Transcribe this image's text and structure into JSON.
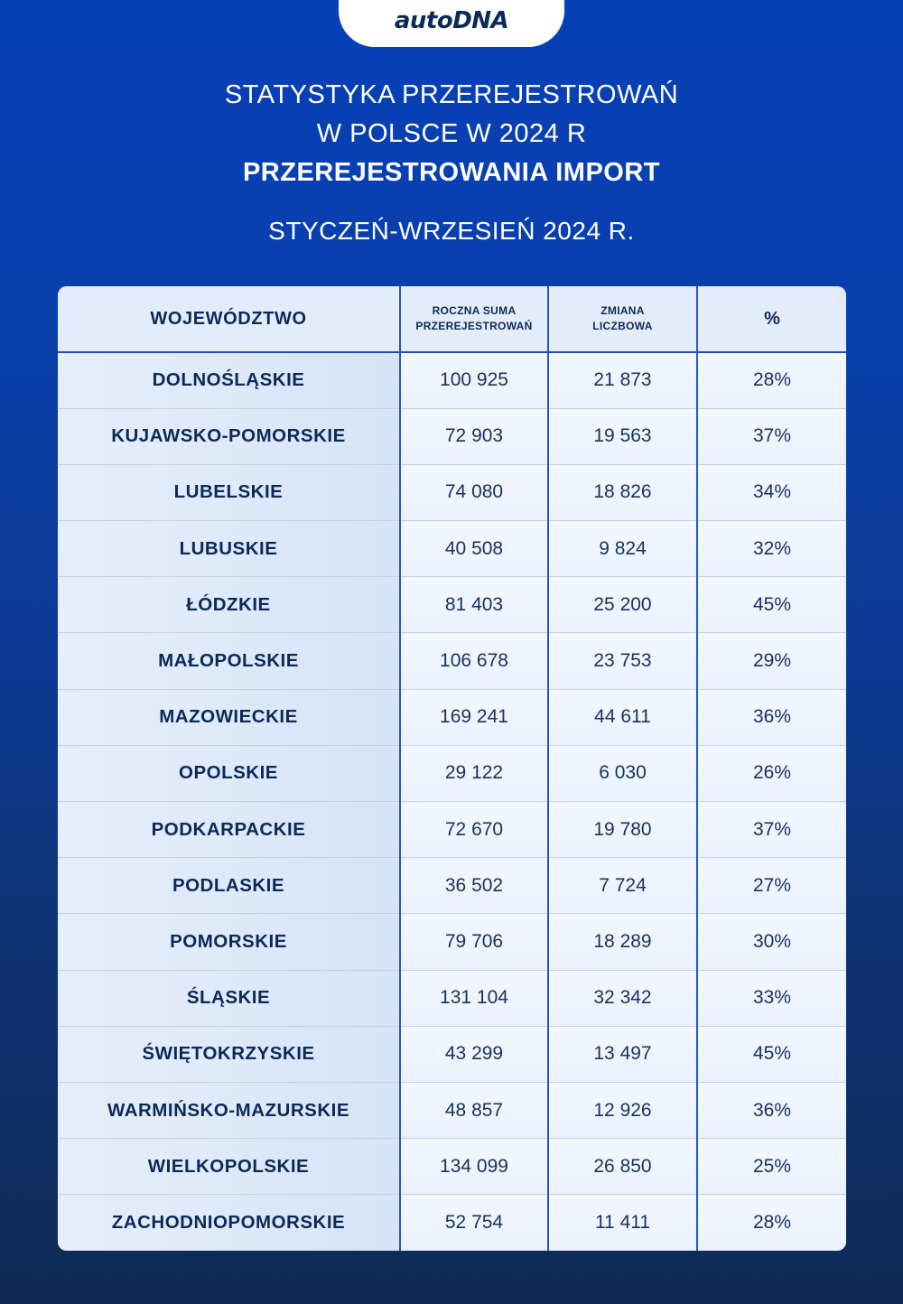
{
  "brand": {
    "logo_text": "autoDNA"
  },
  "header": {
    "title_line1": "STATYSTYKA PRZEREJESTROWAŃ",
    "title_line2": "W POLSCE W 2024 R",
    "title_line3": "PRZEREJESTROWANIA IMPORT",
    "subtitle": "STYCZEŃ-WRZESIEŃ 2024 R."
  },
  "table": {
    "columns": [
      {
        "label_line1": "WOJEWÓDZTWO",
        "label_line2": ""
      },
      {
        "label_line1": "ROCZNA SUMA",
        "label_line2": "PRZEREJESTROWAŃ"
      },
      {
        "label_line1": "ZMIANA",
        "label_line2": "LICZBOWA"
      },
      {
        "label_line1": "%",
        "label_line2": ""
      }
    ],
    "rows": [
      {
        "region": "DOLNOŚLĄSKIE",
        "total": "100 925",
        "change": "21 873",
        "pct": "28%"
      },
      {
        "region": "KUJAWSKO-POMORSKIE",
        "total": "72 903",
        "change": "19 563",
        "pct": "37%"
      },
      {
        "region": "LUBELSKIE",
        "total": "74 080",
        "change": "18 826",
        "pct": "34%"
      },
      {
        "region": "LUBUSKIE",
        "total": "40 508",
        "change": "9 824",
        "pct": "32%"
      },
      {
        "region": "ŁÓDZKIE",
        "total": "81 403",
        "change": "25 200",
        "pct": "45%"
      },
      {
        "region": "MAŁOPOLSKIE",
        "total": "106 678",
        "change": "23 753",
        "pct": "29%"
      },
      {
        "region": "MAZOWIECKIE",
        "total": "169 241",
        "change": "44 611",
        "pct": "36%"
      },
      {
        "region": "OPOLSKIE",
        "total": "29 122",
        "change": "6 030",
        "pct": "26%"
      },
      {
        "region": "PODKARPACKIE",
        "total": "72 670",
        "change": "19 780",
        "pct": "37%"
      },
      {
        "region": "PODLASKIE",
        "total": "36 502",
        "change": "7 724",
        "pct": "27%"
      },
      {
        "region": "POMORSKIE",
        "total": "79 706",
        "change": "18 289",
        "pct": "30%"
      },
      {
        "region": "ŚLĄSKIE",
        "total": "131 104",
        "change": "32 342",
        "pct": "33%"
      },
      {
        "region": "ŚWIĘTOKRZYSKIE",
        "total": "43 299",
        "change": "13 497",
        "pct": "45%"
      },
      {
        "region": "WARMIŃSKO-MAZURSKIE",
        "total": "48 857",
        "change": "12 926",
        "pct": "36%"
      },
      {
        "region": "WIELKOPOLSKIE",
        "total": "134 099",
        "change": "26 850",
        "pct": "25%"
      },
      {
        "region": "ZACHODNIOPOMORSKIE",
        "total": "52 754",
        "change": "11 411",
        "pct": "28%"
      }
    ]
  },
  "colors": {
    "background_top": "#0640b8",
    "background_bottom": "#0f2a55",
    "text_dark": "#0b2a5a",
    "divider_blue": "#2557c0"
  },
  "chart_data": {
    "type": "table",
    "title": "STATYSTYKA PRZEREJESTROWAŃ W POLSCE W 2024 R — PRZEREJESTROWANIA IMPORT",
    "subtitle": "STYCZEŃ-WRZESIEŃ 2024 R.",
    "columns": [
      "WOJEWÓDZTWO",
      "ROCZNA SUMA PRZEREJESTROWAŃ",
      "ZMIANA LICZBOWA",
      "%"
    ],
    "categories": [
      "DOLNOŚLĄSKIE",
      "KUJAWSKO-POMORSKIE",
      "LUBELSKIE",
      "LUBUSKIE",
      "ŁÓDZKIE",
      "MAŁOPOLSKIE",
      "MAZOWIECKIE",
      "OPOLSKIE",
      "PODKARPACKIE",
      "PODLASKIE",
      "POMORSKIE",
      "ŚLĄSKIE",
      "ŚWIĘTOKRZYSKIE",
      "WARMIŃSKO-MAZURSKIE",
      "WIELKOPOLSKIE",
      "ZACHODNIOPOMORSKIE"
    ],
    "series": [
      {
        "name": "ROCZNA SUMA PRZEREJESTROWAŃ",
        "values": [
          100925,
          72903,
          74080,
          40508,
          81403,
          106678,
          169241,
          29122,
          72670,
          36502,
          79706,
          131104,
          43299,
          48857,
          134099,
          52754
        ]
      },
      {
        "name": "ZMIANA LICZBOWA",
        "values": [
          21873,
          19563,
          18826,
          9824,
          25200,
          23753,
          44611,
          6030,
          19780,
          7724,
          18289,
          32342,
          13497,
          12926,
          26850,
          11411
        ]
      },
      {
        "name": "%",
        "values": [
          28,
          37,
          34,
          32,
          45,
          29,
          36,
          26,
          37,
          27,
          30,
          33,
          45,
          36,
          25,
          28
        ]
      }
    ]
  }
}
